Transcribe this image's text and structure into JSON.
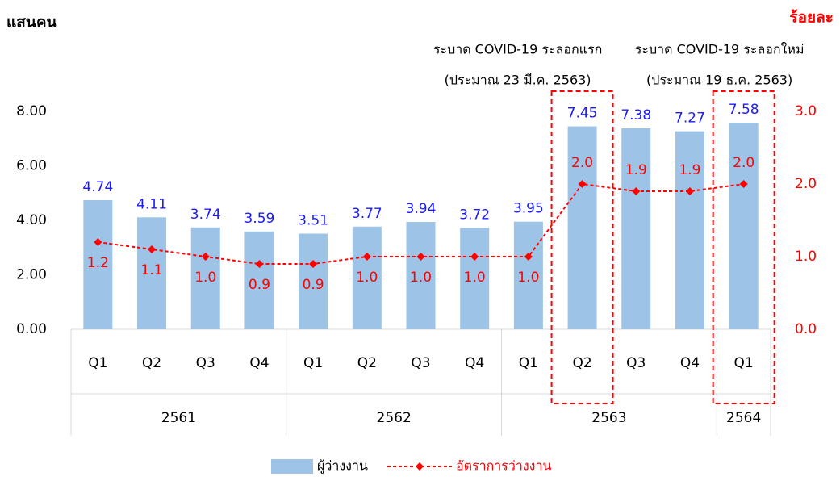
{
  "chart_data": {
    "type": "combo",
    "y_label": "แสนคน",
    "y2_label": "ร้อยละ",
    "groups": [
      {
        "name": "2561",
        "categories": [
          "Q1",
          "Q2",
          "Q3",
          "Q4"
        ]
      },
      {
        "name": "2562",
        "categories": [
          "Q1",
          "Q2",
          "Q3",
          "Q4"
        ]
      },
      {
        "name": "2563",
        "categories": [
          "Q1",
          "Q2",
          "Q3",
          "Q4"
        ]
      },
      {
        "name": "2564",
        "categories": [
          "Q1"
        ]
      }
    ],
    "series": [
      {
        "name": "ผู้ว่างงาน",
        "type": "bar",
        "color": "#9dc3e6",
        "label_color": "#1a1aff",
        "values": [
          4.74,
          4.11,
          3.74,
          3.59,
          3.51,
          3.77,
          3.94,
          3.72,
          3.95,
          7.45,
          7.38,
          7.27,
          7.58
        ]
      },
      {
        "name": "อัตราการว่างงาน",
        "type": "line",
        "axis": "y2",
        "color": "#ff0000",
        "values": [
          1.2,
          1.1,
          1.0,
          0.9,
          0.9,
          1.0,
          1.0,
          1.0,
          1.0,
          2.0,
          1.9,
          1.9,
          2.0
        ],
        "value_labels": [
          "1.2",
          "1.1",
          "1.0",
          "0.9",
          "0.9",
          "1.0",
          "1.0",
          "1.0",
          "1.0",
          "2.0",
          "1.9",
          "1.9",
          "2.0"
        ]
      }
    ],
    "ylim": [
      0,
      8
    ],
    "yticks": [
      {
        "value": 0,
        "label": "0.00"
      },
      {
        "value": 2,
        "label": "2.00"
      },
      {
        "value": 4,
        "label": "4.00"
      },
      {
        "value": 6,
        "label": "6.00"
      },
      {
        "value": 8,
        "label": "8.00"
      }
    ],
    "y2lim": [
      0,
      3
    ],
    "y2ticks": [
      {
        "value": 0,
        "label": "0.0"
      },
      {
        "value": 1,
        "label": "1.0"
      },
      {
        "value": 2,
        "label": "2.0"
      },
      {
        "value": 3,
        "label": "3.0"
      }
    ],
    "annotations": [
      {
        "lines": [
          "ระบาด COVID-19 ระลอกแรก",
          "(ประมาณ 23 มี.ค. 2563)"
        ],
        "category": 9
      },
      {
        "lines": [
          "ระบาด COVID-19 ระลอกใหม่",
          "(ประมาณ 19 ธ.ค. 2563)"
        ],
        "category": 12
      }
    ]
  }
}
